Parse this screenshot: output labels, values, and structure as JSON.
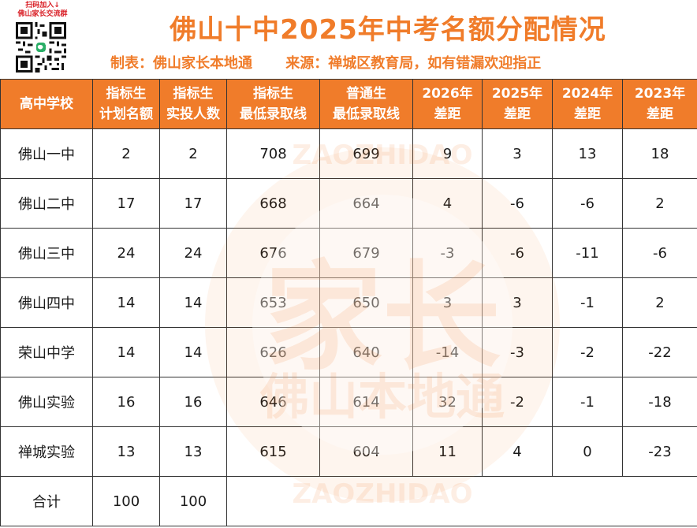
{
  "qr": {
    "caption_line1": "扫码加入↓",
    "caption_line2": "佛山家长交流群"
  },
  "title": "佛山十中2025年中考名额分配情况",
  "subtitle": {
    "maker": "制表：佛山家长本地通",
    "source": "来源：禅城区教育局，如有错漏欢迎指正"
  },
  "watermark": {
    "big": "家长",
    "bottom": "佛山本地通",
    "ring": "ZAOZHIDAO"
  },
  "table": {
    "headers": [
      [
        "高中学校"
      ],
      [
        "指标生",
        "计划名额"
      ],
      [
        "指标生",
        "实投人数"
      ],
      [
        "指标生",
        "最低录取线"
      ],
      [
        "普通生",
        "最低录取线"
      ],
      [
        "2026年",
        "差距"
      ],
      [
        "2025年",
        "差距"
      ],
      [
        "2024年",
        "差距"
      ],
      [
        "2023年",
        "差距"
      ]
    ],
    "rows": [
      [
        "佛山一中",
        "2",
        "2",
        "708",
        "699",
        "9",
        "3",
        "13",
        "18"
      ],
      [
        "佛山二中",
        "17",
        "17",
        "668",
        "664",
        "4",
        "-6",
        "-6",
        "2"
      ],
      [
        "佛山三中",
        "24",
        "24",
        "676",
        "679",
        "-3",
        "-6",
        "-11",
        "-6"
      ],
      [
        "佛山四中",
        "14",
        "14",
        "653",
        "650",
        "3",
        "3",
        "-1",
        "2"
      ],
      [
        "荣山中学",
        "14",
        "14",
        "626",
        "640",
        "-14",
        "-3",
        "-2",
        "-22"
      ],
      [
        "佛山实验",
        "16",
        "16",
        "646",
        "614",
        "32",
        "-2",
        "-1",
        "-18"
      ],
      [
        "禅城实验",
        "13",
        "13",
        "615",
        "604",
        "11",
        "4",
        "0",
        "-23"
      ]
    ],
    "total": [
      "合计",
      "100",
      "100"
    ]
  },
  "colors": {
    "accent": "#f07c2a",
    "qr_caption": "#d92027"
  }
}
